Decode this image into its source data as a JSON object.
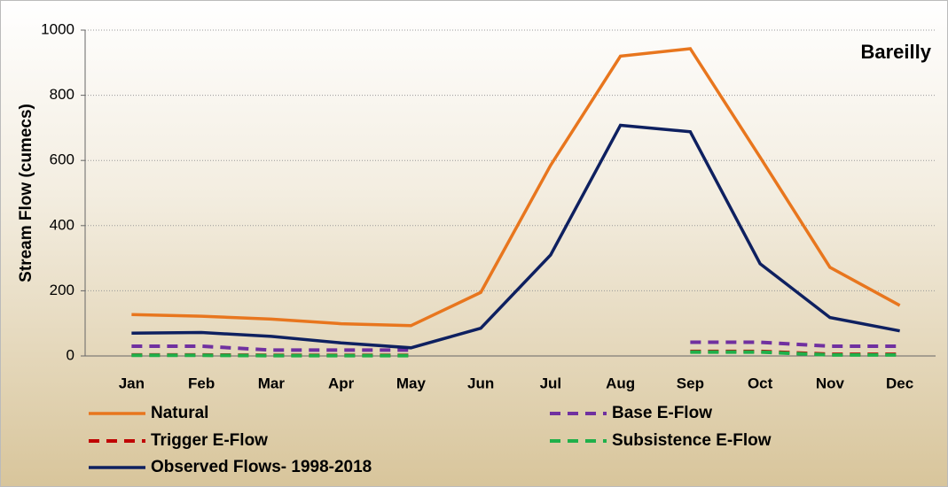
{
  "chart_data": {
    "type": "line",
    "title": "Bareilly",
    "ylabel": "Stream Flow (cumecs)",
    "categories": [
      "Jan",
      "Feb",
      "Mar",
      "Apr",
      "May",
      "Jun",
      "Jul",
      "Aug",
      "Sep",
      "Oct",
      "Nov",
      "Dec"
    ],
    "ylim": [
      0,
      1000
    ],
    "yticks": [
      0,
      200,
      400,
      600,
      800,
      1000
    ],
    "grid": true,
    "series": [
      {
        "name": "Natural",
        "color": "#e8761e",
        "dashed": false,
        "values": [
          127,
          122,
          113,
          99,
          93,
          195,
          585,
          920,
          943,
          610,
          272,
          155
        ]
      },
      {
        "name": "Base E-Flow",
        "color": "#7030a0",
        "dashed": true,
        "values": [
          30,
          30,
          18,
          18,
          18,
          null,
          null,
          null,
          42,
          42,
          30,
          30
        ]
      },
      {
        "name": "Trigger E-Flow",
        "color": "#c00000",
        "dashed": true,
        "values": [
          3,
          3,
          2,
          2,
          2,
          null,
          null,
          null,
          14,
          14,
          5,
          5
        ]
      },
      {
        "name": "Subsistence E-Flow",
        "color": "#1fb04a",
        "dashed": true,
        "values": [
          2,
          2,
          1,
          1,
          1,
          null,
          null,
          null,
          12,
          12,
          3,
          3
        ]
      },
      {
        "name": "Observed Flows- 1998-2018",
        "color": "#0e2060",
        "dashed": false,
        "values": [
          70,
          72,
          60,
          40,
          25,
          85,
          310,
          708,
          688,
          283,
          118,
          77
        ]
      }
    ]
  }
}
